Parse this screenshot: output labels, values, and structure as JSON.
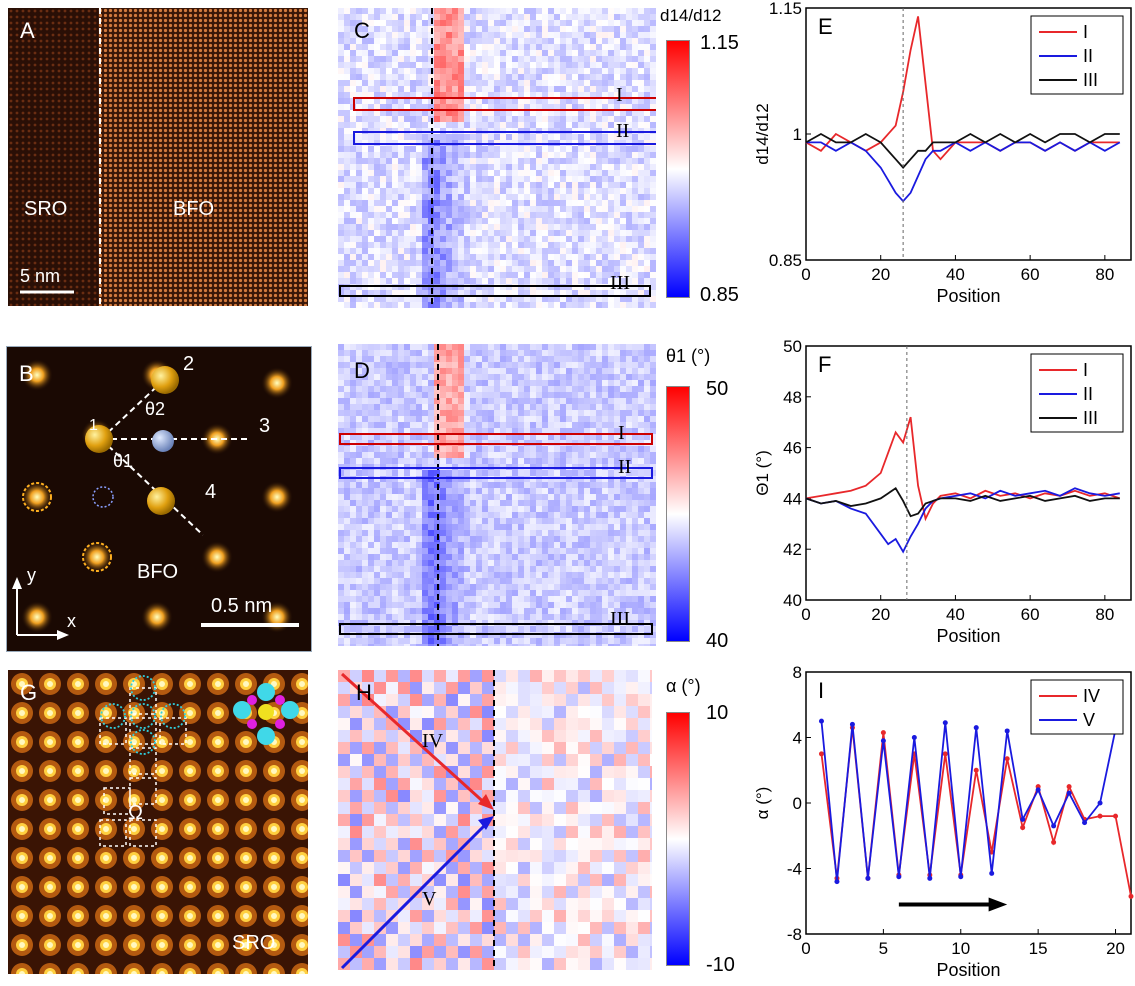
{
  "panels": {
    "A": {
      "label": "A",
      "sro": "SRO",
      "bfo": "BFO",
      "scale": "5 nm"
    },
    "B": {
      "label": "B",
      "bfo": "BFO",
      "scale": "0.5 nm",
      "n2": "2",
      "n3": "3",
      "n4": "4",
      "theta1": "θ1",
      "theta2": "θ2",
      "y": "y",
      "x": "x",
      "n1": "1"
    },
    "C": {
      "label": "C",
      "cb_title": "d14/d12",
      "cb_max": "1.15",
      "cb_min": "0.85",
      "box1": "I",
      "box2": "II",
      "box3": "III"
    },
    "D": {
      "label": "D",
      "cb_title": "θ1 (°)",
      "cb_max": "50",
      "cb_min": "40",
      "box1": "I",
      "box2": "II",
      "box3": "III"
    },
    "G": {
      "label": "G",
      "omega": "Ω",
      "sro": "SRO"
    },
    "H": {
      "label": "H",
      "cb_title": "α (°)",
      "cb_max": "10",
      "cb_min": "-10",
      "arrow1": "IV",
      "arrow2": "V"
    }
  },
  "colors": {
    "red": "#e8282b",
    "blue": "#1a1adf",
    "black": "#111111",
    "gold": "#e8a820",
    "grey": "#8aa0c8"
  },
  "chart_data": [
    {
      "id": "E",
      "panel_label": "E",
      "type": "line",
      "title": "",
      "xlabel": "Position",
      "ylabel": "d14/d12",
      "xlim": [
        0,
        87
      ],
      "ylim": [
        0.85,
        1.15
      ],
      "xticks": [
        0,
        20,
        40,
        60,
        80
      ],
      "yticks": [
        0.85,
        1.0,
        1.15
      ],
      "ytick_labels": [
        "0.85",
        "1",
        "1.15"
      ],
      "legend": [
        "I",
        "II",
        "III"
      ],
      "series": [
        {
          "name": "I",
          "color": "#e8282b",
          "x": [
            0,
            4,
            8,
            12,
            16,
            20,
            24,
            26,
            28,
            30,
            32,
            34,
            36,
            40,
            44,
            48,
            52,
            56,
            60,
            64,
            68,
            72,
            76,
            80,
            84
          ],
          "y": [
            0.99,
            0.98,
            1.0,
            0.99,
            0.98,
            0.99,
            1.01,
            1.05,
            1.1,
            1.14,
            1.06,
            0.98,
            0.97,
            0.99,
            0.99,
            0.99,
            0.98,
            0.99,
            0.99,
            0.98,
            0.99,
            0.98,
            0.99,
            0.99,
            0.99
          ]
        },
        {
          "name": "II",
          "color": "#1a1adf",
          "x": [
            0,
            4,
            8,
            12,
            16,
            20,
            24,
            26,
            28,
            30,
            32,
            34,
            36,
            40,
            44,
            48,
            52,
            56,
            60,
            64,
            68,
            72,
            76,
            80,
            84
          ],
          "y": [
            0.99,
            0.99,
            0.98,
            0.99,
            0.98,
            0.96,
            0.93,
            0.92,
            0.93,
            0.95,
            0.97,
            0.98,
            0.98,
            0.99,
            0.98,
            0.99,
            0.98,
            0.99,
            0.99,
            0.98,
            0.99,
            0.98,
            0.99,
            0.98,
            0.99
          ]
        },
        {
          "name": "III",
          "color": "#111111",
          "x": [
            0,
            4,
            8,
            12,
            16,
            20,
            24,
            26,
            28,
            30,
            32,
            34,
            36,
            40,
            44,
            48,
            52,
            56,
            60,
            64,
            68,
            72,
            76,
            80,
            84
          ],
          "y": [
            0.99,
            1.0,
            0.99,
            0.99,
            1.0,
            0.99,
            0.97,
            0.96,
            0.97,
            0.98,
            0.98,
            0.99,
            0.99,
            0.99,
            1.0,
            0.99,
            1.0,
            0.99,
            1.0,
            0.99,
            1.0,
            1.0,
            0.99,
            1.0,
            1.0
          ]
        }
      ]
    },
    {
      "id": "F",
      "panel_label": "F",
      "type": "line",
      "title": "",
      "xlabel": "Position",
      "ylabel": "Θ1 (°)",
      "xlim": [
        0,
        87
      ],
      "ylim": [
        40,
        50
      ],
      "xticks": [
        0,
        20,
        40,
        60,
        80
      ],
      "yticks": [
        40,
        42,
        44,
        46,
        48,
        50
      ],
      "legend": [
        "I",
        "II",
        "III"
      ],
      "series": [
        {
          "name": "I",
          "color": "#e8282b",
          "x": [
            0,
            4,
            8,
            12,
            16,
            20,
            22,
            24,
            26,
            28,
            30,
            32,
            34,
            36,
            40,
            44,
            48,
            52,
            56,
            60,
            64,
            68,
            72,
            76,
            80,
            84
          ],
          "y": [
            44.0,
            44.1,
            44.2,
            44.3,
            44.5,
            45.0,
            45.8,
            46.6,
            46.2,
            47.2,
            44.5,
            43.2,
            43.8,
            44.1,
            44.2,
            44.0,
            44.3,
            44.1,
            44.2,
            44.0,
            44.2,
            44.1,
            44.3,
            44.1,
            44.2,
            44.0
          ]
        },
        {
          "name": "II",
          "color": "#1a1adf",
          "x": [
            0,
            4,
            8,
            12,
            16,
            20,
            22,
            24,
            26,
            28,
            30,
            32,
            34,
            36,
            40,
            44,
            48,
            52,
            56,
            60,
            64,
            68,
            72,
            76,
            80,
            84
          ],
          "y": [
            44.0,
            43.8,
            43.9,
            43.6,
            43.4,
            42.6,
            42.2,
            42.4,
            41.9,
            42.5,
            43.0,
            43.6,
            43.9,
            44.0,
            44.1,
            44.2,
            44.0,
            44.3,
            44.1,
            44.2,
            44.3,
            44.1,
            44.4,
            44.2,
            44.1,
            44.2
          ]
        },
        {
          "name": "III",
          "color": "#111111",
          "x": [
            0,
            4,
            8,
            12,
            16,
            20,
            22,
            24,
            26,
            28,
            30,
            32,
            34,
            36,
            40,
            44,
            48,
            52,
            56,
            60,
            64,
            68,
            72,
            76,
            80,
            84
          ],
          "y": [
            44.0,
            43.8,
            43.9,
            43.7,
            43.8,
            44.0,
            44.2,
            44.4,
            43.9,
            43.3,
            43.4,
            43.8,
            43.9,
            44.0,
            44.0,
            43.9,
            44.1,
            43.9,
            44.0,
            44.1,
            43.9,
            44.0,
            44.1,
            43.9,
            44.0,
            44.0
          ]
        }
      ]
    },
    {
      "id": "I",
      "panel_label": "I",
      "type": "line",
      "title": "",
      "xlabel": "Position",
      "ylabel": "α (°)",
      "xlim": [
        0,
        21
      ],
      "ylim": [
        -8,
        8
      ],
      "xticks": [
        0,
        5,
        10,
        15,
        20
      ],
      "yticks": [
        -8,
        -4,
        0,
        4,
        8
      ],
      "legend": [
        "IV",
        "V"
      ],
      "series": [
        {
          "name": "IV",
          "color": "#e8282b",
          "x": [
            1,
            2,
            3,
            4,
            5,
            6,
            7,
            8,
            9,
            10,
            11,
            12,
            13,
            14,
            15,
            16,
            17,
            18,
            19,
            20,
            21
          ],
          "y": [
            3.0,
            -4.6,
            4.6,
            -4.6,
            4.3,
            -4.4,
            3.0,
            -4.4,
            3.0,
            -4.4,
            2.0,
            -3.0,
            2.7,
            -1.5,
            1.0,
            -2.4,
            1.0,
            -1.0,
            -0.8,
            -0.8,
            -5.7
          ]
        },
        {
          "name": "V",
          "color": "#1a1adf",
          "x": [
            1,
            2,
            3,
            4,
            5,
            6,
            7,
            8,
            9,
            10,
            11,
            12,
            13,
            14,
            15,
            16,
            17,
            18,
            19,
            20
          ],
          "y": [
            5.0,
            -4.8,
            4.8,
            -4.6,
            3.8,
            -4.5,
            4.0,
            -4.6,
            4.9,
            -4.5,
            4.6,
            -4.3,
            4.4,
            -1.0,
            0.8,
            -1.4,
            0.6,
            -1.2,
            0.0,
            4.5
          ]
        }
      ]
    }
  ]
}
